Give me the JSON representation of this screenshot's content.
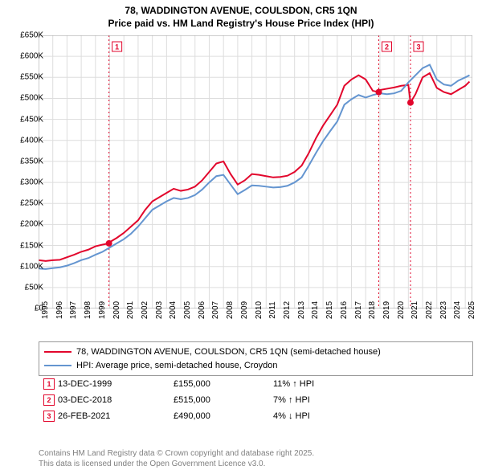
{
  "title_line1": "78, WADDINGTON AVENUE, COULSDON, CR5 1QN",
  "title_line2": "Price paid vs. HM Land Registry's House Price Index (HPI)",
  "chart": {
    "type": "line",
    "background_color": "#ffffff",
    "grid_color": "#dddddd",
    "axis_color": "#999999",
    "x_range": [
      1995,
      2025.5
    ],
    "y_range": [
      0,
      650000
    ],
    "y_ticks": [
      0,
      50000,
      100000,
      150000,
      200000,
      250000,
      300000,
      350000,
      400000,
      450000,
      500000,
      550000,
      600000,
      650000
    ],
    "y_tick_labels": [
      "£0",
      "£50K",
      "£100K",
      "£150K",
      "£200K",
      "£250K",
      "£300K",
      "£350K",
      "£400K",
      "£450K",
      "£500K",
      "£550K",
      "£600K",
      "£650K"
    ],
    "x_ticks": [
      1995,
      1996,
      1997,
      1998,
      1999,
      2000,
      2001,
      2002,
      2003,
      2004,
      2005,
      2006,
      2007,
      2008,
      2009,
      2010,
      2011,
      2012,
      2013,
      2014,
      2015,
      2016,
      2017,
      2018,
      2019,
      2020,
      2021,
      2022,
      2023,
      2024,
      2025
    ],
    "series": [
      {
        "name": "78, WADDINGTON AVENUE, COULSDON, CR5 1QN (semi-detached house)",
        "color": "#e2062c",
        "line_width": 2,
        "data": [
          [
            1995,
            115000
          ],
          [
            1995.5,
            113000
          ],
          [
            1996,
            115000
          ],
          [
            1996.5,
            116000
          ],
          [
            1997,
            122000
          ],
          [
            1997.5,
            128000
          ],
          [
            1998,
            135000
          ],
          [
            1998.5,
            140000
          ],
          [
            1999,
            148000
          ],
          [
            1999.5,
            152000
          ],
          [
            1999.95,
            155000
          ],
          [
            2000,
            158000
          ],
          [
            2000.5,
            168000
          ],
          [
            2001,
            180000
          ],
          [
            2001.5,
            195000
          ],
          [
            2002,
            210000
          ],
          [
            2002.5,
            235000
          ],
          [
            2003,
            255000
          ],
          [
            2003.5,
            265000
          ],
          [
            2004,
            275000
          ],
          [
            2004.5,
            285000
          ],
          [
            2005,
            280000
          ],
          [
            2005.5,
            283000
          ],
          [
            2006,
            290000
          ],
          [
            2006.5,
            305000
          ],
          [
            2007,
            325000
          ],
          [
            2007.5,
            345000
          ],
          [
            2008,
            350000
          ],
          [
            2008.5,
            320000
          ],
          [
            2009,
            295000
          ],
          [
            2009.5,
            305000
          ],
          [
            2010,
            320000
          ],
          [
            2010.5,
            318000
          ],
          [
            2011,
            315000
          ],
          [
            2011.5,
            312000
          ],
          [
            2012,
            313000
          ],
          [
            2012.5,
            316000
          ],
          [
            2013,
            325000
          ],
          [
            2013.5,
            340000
          ],
          [
            2014,
            370000
          ],
          [
            2014.5,
            405000
          ],
          [
            2015,
            435000
          ],
          [
            2015.5,
            460000
          ],
          [
            2016,
            485000
          ],
          [
            2016.5,
            530000
          ],
          [
            2017,
            545000
          ],
          [
            2017.5,
            555000
          ],
          [
            2018,
            545000
          ],
          [
            2018.5,
            518000
          ],
          [
            2018.92,
            515000
          ],
          [
            2019,
            520000
          ],
          [
            2019.5,
            523000
          ],
          [
            2020,
            526000
          ],
          [
            2020.5,
            530000
          ],
          [
            2021,
            532000
          ],
          [
            2021.15,
            490000
          ],
          [
            2021.5,
            510000
          ],
          [
            2022,
            550000
          ],
          [
            2022.5,
            560000
          ],
          [
            2023,
            525000
          ],
          [
            2023.5,
            515000
          ],
          [
            2024,
            510000
          ],
          [
            2024.5,
            520000
          ],
          [
            2025,
            530000
          ],
          [
            2025.3,
            540000
          ]
        ]
      },
      {
        "name": "HPI: Average price, semi-detached house, Croydon",
        "color": "#6495d0",
        "line_width": 2,
        "data": [
          [
            1995,
            95000
          ],
          [
            1995.5,
            94000
          ],
          [
            1996,
            96000
          ],
          [
            1996.5,
            98000
          ],
          [
            1997,
            102000
          ],
          [
            1997.5,
            108000
          ],
          [
            1998,
            115000
          ],
          [
            1998.5,
            120000
          ],
          [
            1999,
            128000
          ],
          [
            1999.5,
            135000
          ],
          [
            2000,
            145000
          ],
          [
            2000.5,
            155000
          ],
          [
            2001,
            165000
          ],
          [
            2001.5,
            178000
          ],
          [
            2002,
            195000
          ],
          [
            2002.5,
            215000
          ],
          [
            2003,
            235000
          ],
          [
            2003.5,
            245000
          ],
          [
            2004,
            255000
          ],
          [
            2004.5,
            263000
          ],
          [
            2005,
            260000
          ],
          [
            2005.5,
            263000
          ],
          [
            2006,
            270000
          ],
          [
            2006.5,
            283000
          ],
          [
            2007,
            300000
          ],
          [
            2007.5,
            315000
          ],
          [
            2008,
            318000
          ],
          [
            2008.5,
            295000
          ],
          [
            2009,
            272000
          ],
          [
            2009.5,
            282000
          ],
          [
            2010,
            293000
          ],
          [
            2010.5,
            292000
          ],
          [
            2011,
            290000
          ],
          [
            2011.5,
            288000
          ],
          [
            2012,
            289000
          ],
          [
            2012.5,
            292000
          ],
          [
            2013,
            300000
          ],
          [
            2013.5,
            312000
          ],
          [
            2014,
            340000
          ],
          [
            2014.5,
            370000
          ],
          [
            2015,
            398000
          ],
          [
            2015.5,
            422000
          ],
          [
            2016,
            445000
          ],
          [
            2016.5,
            485000
          ],
          [
            2017,
            498000
          ],
          [
            2017.5,
            508000
          ],
          [
            2018,
            502000
          ],
          [
            2018.5,
            508000
          ],
          [
            2019,
            512000
          ],
          [
            2019.5,
            510000
          ],
          [
            2020,
            512000
          ],
          [
            2020.5,
            518000
          ],
          [
            2021,
            538000
          ],
          [
            2021.5,
            555000
          ],
          [
            2022,
            572000
          ],
          [
            2022.5,
            580000
          ],
          [
            2023,
            545000
          ],
          [
            2023.5,
            533000
          ],
          [
            2024,
            530000
          ],
          [
            2024.5,
            542000
          ],
          [
            2025,
            550000
          ],
          [
            2025.3,
            555000
          ]
        ]
      }
    ],
    "marker_lines": [
      {
        "x": 1999.95,
        "label": "1",
        "color": "#e2062c"
      },
      {
        "x": 2018.92,
        "label": "2",
        "color": "#e2062c"
      },
      {
        "x": 2021.15,
        "label": "3",
        "color": "#e2062c"
      }
    ],
    "marker_points": [
      {
        "x": 1999.95,
        "y": 155000,
        "color": "#e2062c"
      },
      {
        "x": 2018.92,
        "y": 515000,
        "color": "#e2062c"
      },
      {
        "x": 2021.15,
        "y": 490000,
        "color": "#e2062c"
      }
    ]
  },
  "legend": {
    "items": [
      {
        "label": "78, WADDINGTON AVENUE, COULSDON, CR5 1QN (semi-detached house)",
        "color": "#e2062c"
      },
      {
        "label": "HPI: Average price, semi-detached house, Croydon",
        "color": "#6495d0"
      }
    ]
  },
  "markers": [
    {
      "badge": "1",
      "date": "13-DEC-1999",
      "price": "£155,000",
      "pct": "11% ↑ HPI"
    },
    {
      "badge": "2",
      "date": "03-DEC-2018",
      "price": "£515,000",
      "pct": "7% ↑ HPI"
    },
    {
      "badge": "3",
      "date": "26-FEB-2021",
      "price": "£490,000",
      "pct": "4% ↓ HPI"
    }
  ],
  "marker_badge_color": "#e2062c",
  "footer_line1": "Contains HM Land Registry data © Crown copyright and database right 2025.",
  "footer_line2": "This data is licensed under the Open Government Licence v3.0."
}
